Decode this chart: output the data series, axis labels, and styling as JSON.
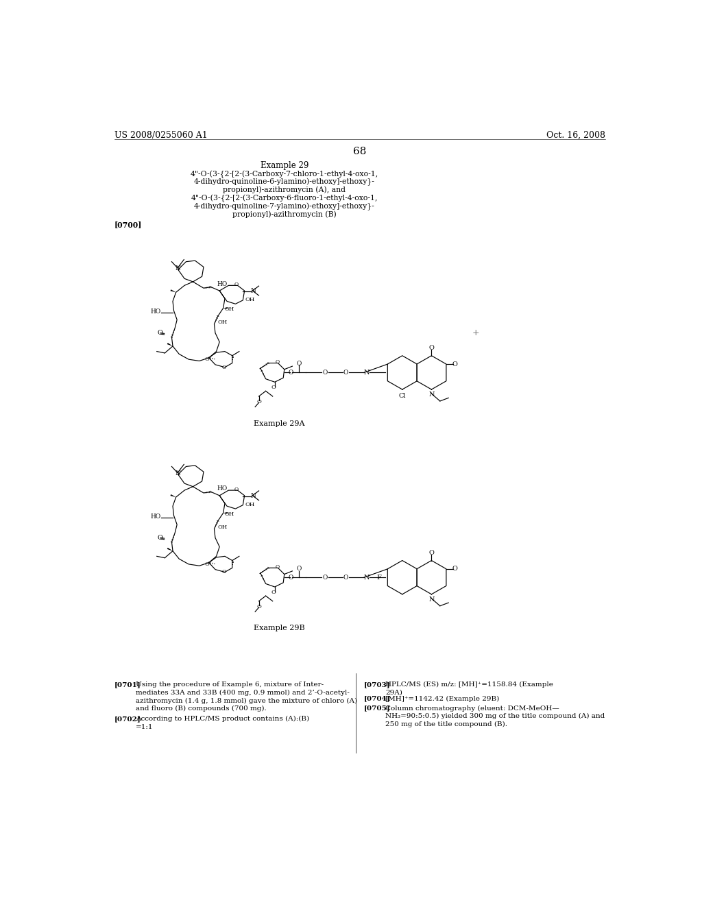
{
  "page_number": "68",
  "patent_number": "US 2008/0255060 A1",
  "patent_date": "Oct. 16, 2008",
  "bg_color": "#ffffff",
  "text_color": "#000000",
  "header_fontsize": 9,
  "body_fontsize": 7.8,
  "small_fontsize": 7,
  "title_fontsize": 8.5,
  "example_title": "Example 29",
  "line1": "4\"-O-(3-{2-[2-(3-Carboxy-7-chloro-1-ethyl-4-oxo-1,",
  "line2": "4-dihydro-quinoline-6-ylamino)-ethoxy]-ethoxy}-",
  "line3": "propionyl)-azithromycin (A), and",
  "line4": "4\"-O-(3-{2-[2-(3-Carboxy-6-fluoro-1-ethyl-4-oxo-1,",
  "line5": "4-dihydro-quinoline-7-ylamino)-ethoxy]-ethoxy}-",
  "line6": "propionyl)-azithromycin (B)",
  "p0700": "[0700]",
  "p0701": "[0701]",
  "p0702": "[0702]",
  "p0703": "[0703]",
  "p0704": "[0704]",
  "p0705": "[0705]",
  "t0701": "Using the procedure of Example 6, mixture of Inter-mediates 33A and 33B (400 mg, 0.9 mmol) and 2’-O-acetyl-azithromycin (1.4 g, 1.8 mmol) gave the mixture of chloro (A) and fluoro (B) compounds (700 mg).",
  "t0702": "According to HPLC/MS product contains (A):(B) =1:1",
  "t0703": "HPLC/MS (ES) m/z: [MH]⁺=1158.84 (Example 29A)",
  "t0704": "[MH]⁺=1142.42 (Example 29B)",
  "t0705": "Column chromatography (eluent: DCM-MeOH—NH₃=90:5:0.5) yielded 300 mg of the title compound (A) and 250 mg of the title compound (B).",
  "label_29A": "Example 29A",
  "label_29B": "Example 29B"
}
